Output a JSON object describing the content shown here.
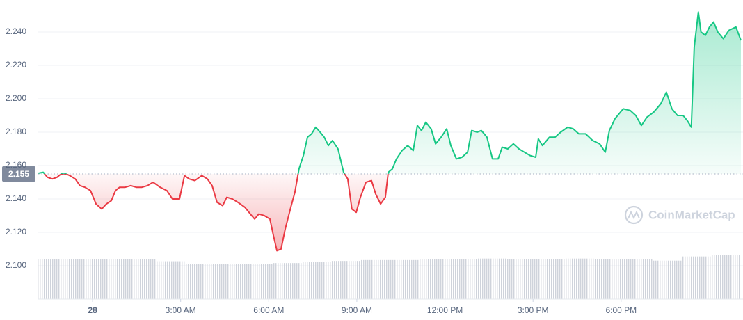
{
  "chart_data": {
    "type": "line",
    "watermark": "CoinMarketCap",
    "reference_line": 2.155,
    "colors": {
      "above": "#16c784",
      "below": "#ea3943",
      "volume": "#cfd3db",
      "reference": "#808a9d"
    },
    "grid": true,
    "xlim": [
      -1.85,
      22.08
    ],
    "xticks": [
      {
        "value": 0,
        "label": "28"
      },
      {
        "value": 3,
        "label": "3:00 AM"
      },
      {
        "value": 6,
        "label": "6:00 AM"
      },
      {
        "value": 9,
        "label": "9:00 AM"
      },
      {
        "value": 12,
        "label": "12:00 PM"
      },
      {
        "value": 15,
        "label": "3:00 PM"
      },
      {
        "value": 18,
        "label": "6:00 PM"
      }
    ],
    "ylim": [
      2.08,
      2.26
    ],
    "yticks": [
      {
        "value": 2.1,
        "label": "2.100"
      },
      {
        "value": 2.12,
        "label": "2.120"
      },
      {
        "value": 2.14,
        "label": "2.140"
      },
      {
        "value": 2.16,
        "label": "2.160"
      },
      {
        "value": 2.18,
        "label": "2.180"
      },
      {
        "value": 2.2,
        "label": "2.200"
      },
      {
        "value": 2.22,
        "label": "2.220"
      },
      {
        "value": 2.24,
        "label": "2.240"
      }
    ],
    "x": [
      -1.85,
      -1.68,
      -1.54,
      -1.37,
      -1.21,
      -1.07,
      -0.9,
      -0.78,
      -0.59,
      -0.43,
      -0.26,
      -0.07,
      0.12,
      0.31,
      0.47,
      0.64,
      0.78,
      0.92,
      1.11,
      1.3,
      1.49,
      1.68,
      1.87,
      2.06,
      2.3,
      2.53,
      2.72,
      2.96,
      3.13,
      3.29,
      3.48,
      3.72,
      3.91,
      4.07,
      4.24,
      4.43,
      4.57,
      4.76,
      4.95,
      5.19,
      5.42,
      5.52,
      5.66,
      5.85,
      6.04,
      6.16,
      6.28,
      6.42,
      6.56,
      6.75,
      6.89,
      7.03,
      7.18,
      7.32,
      7.46,
      7.6,
      7.75,
      7.89,
      8.03,
      8.17,
      8.36,
      8.55,
      8.69,
      8.83,
      8.98,
      9.12,
      9.31,
      9.5,
      9.64,
      9.81,
      9.97,
      10.07,
      10.21,
      10.35,
      10.54,
      10.73,
      10.92,
      11.06,
      11.2,
      11.35,
      11.53,
      11.68,
      11.87,
      12.06,
      12.2,
      12.39,
      12.58,
      12.77,
      12.91,
      13.1,
      13.24,
      13.43,
      13.62,
      13.81,
      13.95,
      14.14,
      14.33,
      14.52,
      14.71,
      14.9,
      15.09,
      15.18,
      15.32,
      15.56,
      15.75,
      15.94,
      16.18,
      16.37,
      16.56,
      16.79,
      17.03,
      17.27,
      17.46,
      17.6,
      17.79,
      17.93,
      18.07,
      18.31,
      18.5,
      18.69,
      18.88,
      19.11,
      19.35,
      19.54,
      19.73,
      19.92,
      20.11,
      20.25,
      20.39,
      20.49,
      20.63,
      20.72,
      20.87,
      21.01,
      21.15,
      21.29,
      21.48,
      21.67,
      21.91,
      22.08
    ],
    "values": [
      2.1554,
      2.156,
      2.153,
      2.152,
      2.153,
      2.155,
      2.155,
      2.154,
      2.152,
      2.148,
      2.147,
      2.145,
      2.137,
      2.134,
      2.137,
      2.139,
      2.145,
      2.147,
      2.147,
      2.148,
      2.147,
      2.147,
      2.148,
      2.15,
      2.147,
      2.145,
      2.14,
      2.14,
      2.154,
      2.152,
      2.151,
      2.154,
      2.152,
      2.148,
      2.138,
      2.136,
      2.141,
      2.14,
      2.138,
      2.135,
      2.13,
      2.128,
      2.131,
      2.13,
      2.128,
      2.118,
      2.109,
      2.11,
      2.122,
      2.135,
      2.144,
      2.158,
      2.166,
      2.177,
      2.179,
      2.183,
      2.18,
      2.177,
      2.172,
      2.175,
      2.17,
      2.156,
      2.152,
      2.134,
      2.132,
      2.141,
      2.15,
      2.151,
      2.143,
      2.137,
      2.141,
      2.156,
      2.158,
      2.164,
      2.169,
      2.172,
      2.169,
      2.184,
      2.181,
      2.186,
      2.182,
      2.173,
      2.177,
      2.182,
      2.172,
      2.164,
      2.165,
      2.168,
      2.181,
      2.18,
      2.181,
      2.177,
      2.164,
      2.164,
      2.171,
      2.17,
      2.173,
      2.17,
      2.168,
      2.166,
      2.165,
      2.176,
      2.172,
      2.177,
      2.177,
      2.18,
      2.183,
      2.182,
      2.179,
      2.179,
      2.175,
      2.173,
      2.168,
      2.181,
      2.188,
      2.191,
      2.194,
      2.193,
      2.19,
      2.184,
      2.189,
      2.192,
      2.197,
      2.204,
      2.194,
      2.19,
      2.19,
      2.187,
      2.183,
      2.231,
      2.252,
      2.24,
      2.238,
      2.243,
      2.246,
      2.24,
      2.236,
      2.241,
      2.243,
      2.235
    ],
    "y2lim": [
      0,
      100
    ],
    "volume_values": [
      13.4,
      13.4,
      13.3,
      13.2,
      12.6,
      11.6,
      11.6,
      11.6,
      12.0,
      12.3,
      12.7,
      13.0,
      13.0,
      13.2,
      13.4,
      13.5,
      13.4,
      13.4,
      13.5,
      13.4,
      13.2,
      12.8,
      14.2,
      14.6
    ]
  }
}
